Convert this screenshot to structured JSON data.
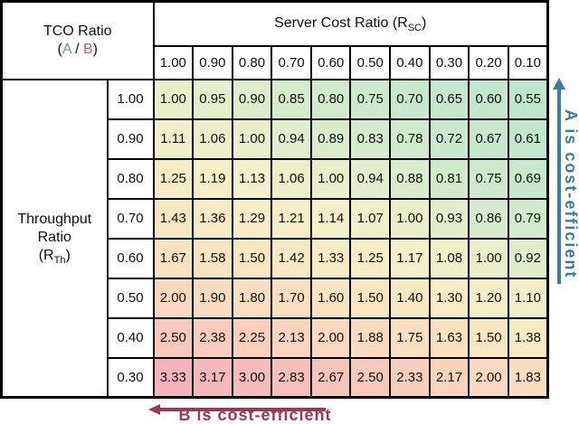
{
  "figure": {
    "header": {
      "tco_title": "TCO Ratio",
      "paren_open": "(",
      "a_label": "A",
      "slash": " / ",
      "b_label": "B",
      "paren_close": ")",
      "server_cost_prefix": "Server Cost Ratio (R",
      "server_cost_sub": "SC",
      "server_cost_suffix": ")"
    },
    "row_group": {
      "line1": "Throughput",
      "line2": "Ratio",
      "line3_prefix": "(R",
      "line3_sub": "Th",
      "line3_suffix": ")"
    },
    "annotations": {
      "right_text": "A is cost-efficient",
      "bottom_text": "B is cost-efficient"
    },
    "colors": {
      "a_text": "#5e95ae",
      "b_text": "#b5627e",
      "right_arrow": "#3d7d9c",
      "bottom_arrow": "#9e3659",
      "grid_border": "#000000"
    }
  },
  "chart_data": {
    "type": "heatmap",
    "title": "TCO Ratio (A / B)",
    "xlabel": "Server Cost Ratio (R_SC)",
    "ylabel": "Throughput Ratio (R_Th)",
    "columns": [
      "1.00",
      "0.90",
      "0.80",
      "0.70",
      "0.60",
      "0.50",
      "0.40",
      "0.30",
      "0.20",
      "0.10"
    ],
    "rows": [
      "1.00",
      "0.90",
      "0.80",
      "0.70",
      "0.60",
      "0.50",
      "0.40",
      "0.30"
    ],
    "values": [
      [
        "1.00",
        "0.95",
        "0.90",
        "0.85",
        "0.80",
        "0.75",
        "0.70",
        "0.65",
        "0.60",
        "0.55"
      ],
      [
        "1.11",
        "1.06",
        "1.00",
        "0.94",
        "0.89",
        "0.83",
        "0.78",
        "0.72",
        "0.67",
        "0.61"
      ],
      [
        "1.25",
        "1.19",
        "1.13",
        "1.06",
        "1.00",
        "0.94",
        "0.88",
        "0.81",
        "0.75",
        "0.69"
      ],
      [
        "1.43",
        "1.36",
        "1.29",
        "1.21",
        "1.14",
        "1.07",
        "1.00",
        "0.93",
        "0.86",
        "0.79"
      ],
      [
        "1.67",
        "1.58",
        "1.50",
        "1.42",
        "1.33",
        "1.25",
        "1.17",
        "1.08",
        "1.00",
        "0.92"
      ],
      [
        "2.00",
        "1.90",
        "1.80",
        "1.70",
        "1.60",
        "1.50",
        "1.40",
        "1.30",
        "1.20",
        "1.10"
      ],
      [
        "2.50",
        "2.38",
        "2.25",
        "2.13",
        "2.00",
        "1.88",
        "1.75",
        "1.63",
        "1.50",
        "1.38"
      ],
      [
        "3.33",
        "3.17",
        "3.00",
        "2.83",
        "2.67",
        "2.50",
        "2.33",
        "2.17",
        "2.00",
        "1.83"
      ]
    ],
    "colormap_stops": [
      {
        "v": 0.55,
        "c": "#bfe6cc"
      },
      {
        "v": 0.7,
        "c": "#c7e8cd"
      },
      {
        "v": 0.85,
        "c": "#d6ebcc"
      },
      {
        "v": 1.0,
        "c": "#eaefca"
      },
      {
        "v": 1.15,
        "c": "#f4efc8"
      },
      {
        "v": 1.3,
        "c": "#f7ecc5"
      },
      {
        "v": 1.5,
        "c": "#f9e6c1"
      },
      {
        "v": 1.75,
        "c": "#fadfc0"
      },
      {
        "v": 2.0,
        "c": "#fbd8bf"
      },
      {
        "v": 2.5,
        "c": "#f8c8ba"
      },
      {
        "v": 3.33,
        "c": "#f5b4bb"
      }
    ],
    "legend_position": "annotations (right: A cost-efficient toward low R_SC; bottom-left: B cost-efficient toward high TCO ratio)"
  }
}
